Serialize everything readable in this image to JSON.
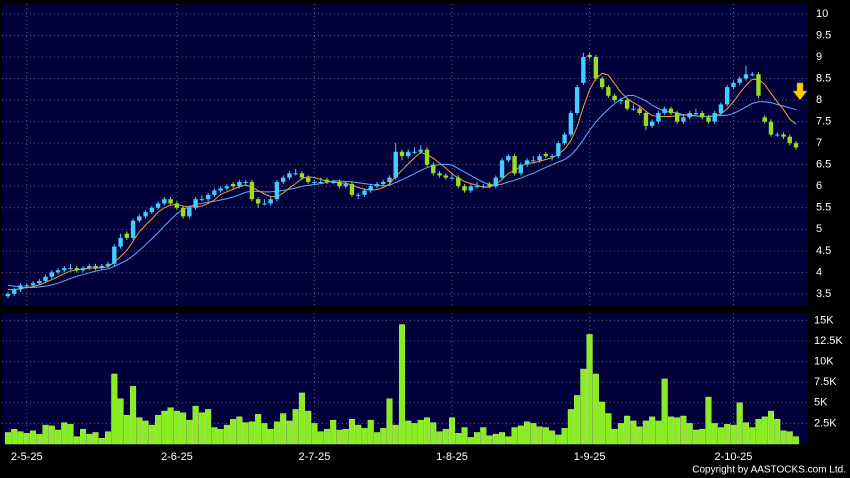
{
  "chart_data": {
    "type": "candlestick",
    "copyright": "Copyright by AASTOCKS.com Ltd.",
    "up_color": "#44ccff",
    "down_color": "#99dd22",
    "grid": true,
    "categories": [
      null,
      null,
      null,
      "2-5-25",
      null,
      null,
      null,
      null,
      null,
      null,
      null,
      null,
      null,
      null,
      null,
      null,
      null,
      null,
      null,
      null,
      null,
      null,
      null,
      null,
      null,
      null,
      null,
      "2-6-25",
      null,
      null,
      null,
      null,
      null,
      null,
      null,
      null,
      null,
      null,
      null,
      null,
      null,
      null,
      null,
      null,
      null,
      null,
      null,
      null,
      null,
      "2-7-25",
      null,
      null,
      null,
      null,
      null,
      null,
      null,
      null,
      null,
      null,
      null,
      null,
      null,
      null,
      null,
      null,
      null,
      null,
      null,
      null,
      null,
      "1-8-25",
      null,
      null,
      null,
      null,
      null,
      null,
      null,
      null,
      null,
      null,
      null,
      null,
      null,
      null,
      null,
      null,
      null,
      null,
      null,
      null,
      null,
      "1-9-25",
      null,
      null,
      null,
      null,
      null,
      null,
      null,
      null,
      null,
      null,
      null,
      null,
      null,
      null,
      null,
      null,
      null,
      null,
      null,
      null,
      null,
      null,
      "2-10-25",
      null,
      null,
      null,
      null,
      null,
      null,
      null,
      null,
      null,
      null
    ],
    "ohlc": [
      [
        3.45,
        3.55,
        3.4,
        3.5
      ],
      [
        3.5,
        3.65,
        3.45,
        3.6
      ],
      [
        3.6,
        3.75,
        3.55,
        3.7
      ],
      [
        3.7,
        3.75,
        3.65,
        3.7
      ],
      [
        3.7,
        3.8,
        3.65,
        3.75
      ],
      [
        3.75,
        3.85,
        3.7,
        3.8
      ],
      [
        3.8,
        3.95,
        3.75,
        3.9
      ],
      [
        3.9,
        4.05,
        3.85,
        4.0
      ],
      [
        4.0,
        4.1,
        3.95,
        4.05
      ],
      [
        4.05,
        4.15,
        4.0,
        4.1
      ],
      [
        4.1,
        4.2,
        4.05,
        4.1
      ],
      [
        4.1,
        4.15,
        4.0,
        4.05
      ],
      [
        4.05,
        4.15,
        4.0,
        4.1
      ],
      [
        4.1,
        4.2,
        4.05,
        4.15
      ],
      [
        4.15,
        4.2,
        4.05,
        4.1
      ],
      [
        4.1,
        4.2,
        4.05,
        4.15
      ],
      [
        4.15,
        4.25,
        4.1,
        4.2
      ],
      [
        4.2,
        4.65,
        4.15,
        4.6
      ],
      [
        4.6,
        4.9,
        4.55,
        4.8
      ],
      [
        4.9,
        4.95,
        4.75,
        4.8
      ],
      [
        4.8,
        5.25,
        4.75,
        5.2
      ],
      [
        5.2,
        5.35,
        5.15,
        5.3
      ],
      [
        5.3,
        5.45,
        5.25,
        5.4
      ],
      [
        5.4,
        5.55,
        5.35,
        5.5
      ],
      [
        5.5,
        5.65,
        5.45,
        5.6
      ],
      [
        5.6,
        5.75,
        5.55,
        5.7
      ],
      [
        5.7,
        5.75,
        5.55,
        5.6
      ],
      [
        5.6,
        5.65,
        5.45,
        5.5
      ],
      [
        5.5,
        5.55,
        5.25,
        5.3
      ],
      [
        5.3,
        5.55,
        5.25,
        5.5
      ],
      [
        5.5,
        5.75,
        5.45,
        5.7
      ],
      [
        5.7,
        5.8,
        5.65,
        5.7
      ],
      [
        5.7,
        5.85,
        5.65,
        5.8
      ],
      [
        5.8,
        5.95,
        5.75,
        5.9
      ],
      [
        5.9,
        6.0,
        5.85,
        5.95
      ],
      [
        5.95,
        6.05,
        5.9,
        6.0
      ],
      [
        6.05,
        6.1,
        5.95,
        6.0
      ],
      [
        6.0,
        6.15,
        5.95,
        6.1
      ],
      [
        6.1,
        6.15,
        6.0,
        6.1
      ],
      [
        6.1,
        6.15,
        5.65,
        5.7
      ],
      [
        5.7,
        5.75,
        5.5,
        5.6
      ],
      [
        5.6,
        5.7,
        5.55,
        5.6
      ],
      [
        5.6,
        5.75,
        5.55,
        5.7
      ],
      [
        5.7,
        6.15,
        5.65,
        6.1
      ],
      [
        6.1,
        6.25,
        6.05,
        6.2
      ],
      [
        6.2,
        6.35,
        6.15,
        6.3
      ],
      [
        6.3,
        6.4,
        6.25,
        6.3
      ],
      [
        6.3,
        6.35,
        6.15,
        6.2
      ],
      [
        6.2,
        6.25,
        6.05,
        6.1
      ],
      [
        6.1,
        6.15,
        6.05,
        6.1
      ],
      [
        6.1,
        6.2,
        6.05,
        6.1
      ],
      [
        6.15,
        6.2,
        6.05,
        6.1
      ],
      [
        6.1,
        6.15,
        6.05,
        6.1
      ],
      [
        6.1,
        6.15,
        5.95,
        6.0
      ],
      [
        6.0,
        6.1,
        5.95,
        6.05
      ],
      [
        6.05,
        6.1,
        5.75,
        5.8
      ],
      [
        5.8,
        5.85,
        5.7,
        5.8
      ],
      [
        5.8,
        5.95,
        5.75,
        5.9
      ],
      [
        5.9,
        6.05,
        5.85,
        6.0
      ],
      [
        6.0,
        6.1,
        5.95,
        6.05
      ],
      [
        6.05,
        6.15,
        6.0,
        6.1
      ],
      [
        6.1,
        6.25,
        6.05,
        6.2
      ],
      [
        6.2,
        7.0,
        6.15,
        6.8
      ],
      [
        6.8,
        6.85,
        6.6,
        6.7
      ],
      [
        6.7,
        6.85,
        6.65,
        6.8
      ],
      [
        6.8,
        6.9,
        6.75,
        6.8
      ],
      [
        6.8,
        6.95,
        6.75,
        6.85
      ],
      [
        6.85,
        6.9,
        6.45,
        6.5
      ],
      [
        6.5,
        6.55,
        6.25,
        6.3
      ],
      [
        6.3,
        6.35,
        6.2,
        6.25
      ],
      [
        6.25,
        6.3,
        6.15,
        6.2
      ],
      [
        6.2,
        6.3,
        6.15,
        6.2
      ],
      [
        6.2,
        6.25,
        5.95,
        6.0
      ],
      [
        6.0,
        6.05,
        5.85,
        5.9
      ],
      [
        5.9,
        6.05,
        5.85,
        6.0
      ],
      [
        6.0,
        6.1,
        5.95,
        6.0
      ],
      [
        6.0,
        6.05,
        5.95,
        6.0
      ],
      [
        6.05,
        6.1,
        5.95,
        6.0
      ],
      [
        6.0,
        6.25,
        5.95,
        6.2
      ],
      [
        6.2,
        6.65,
        6.15,
        6.6
      ],
      [
        6.6,
        6.75,
        6.55,
        6.7
      ],
      [
        6.7,
        6.75,
        6.25,
        6.3
      ],
      [
        6.3,
        6.55,
        6.25,
        6.5
      ],
      [
        6.5,
        6.65,
        6.45,
        6.6
      ],
      [
        6.6,
        6.7,
        6.55,
        6.6
      ],
      [
        6.6,
        6.75,
        6.55,
        6.7
      ],
      [
        6.75,
        6.8,
        6.65,
        6.7
      ],
      [
        6.7,
        6.75,
        6.6,
        6.7
      ],
      [
        6.7,
        7.05,
        6.65,
        7.0
      ],
      [
        7.0,
        7.25,
        6.95,
        7.2
      ],
      [
        7.2,
        7.75,
        7.15,
        7.7
      ],
      [
        7.7,
        8.35,
        7.65,
        8.3
      ],
      [
        8.4,
        9.1,
        8.35,
        9.0
      ],
      [
        9.05,
        9.1,
        8.95,
        9.0
      ],
      [
        9.0,
        9.05,
        8.45,
        8.5
      ],
      [
        8.5,
        8.55,
        8.25,
        8.3
      ],
      [
        8.3,
        8.35,
        8.05,
        8.1
      ],
      [
        8.1,
        8.15,
        7.95,
        8.0
      ],
      [
        8.0,
        8.05,
        7.9,
        8.0
      ],
      [
        8.0,
        8.05,
        7.75,
        7.8
      ],
      [
        7.8,
        7.9,
        7.75,
        7.8
      ],
      [
        7.8,
        7.85,
        7.65,
        7.7
      ],
      [
        7.7,
        7.75,
        7.3,
        7.4
      ],
      [
        7.4,
        7.55,
        7.35,
        7.5
      ],
      [
        7.5,
        7.75,
        7.45,
        7.7
      ],
      [
        7.7,
        7.85,
        7.65,
        7.8
      ],
      [
        7.8,
        7.85,
        7.65,
        7.7
      ],
      [
        7.7,
        7.75,
        7.45,
        7.5
      ],
      [
        7.5,
        7.65,
        7.45,
        7.6
      ],
      [
        7.6,
        7.75,
        7.55,
        7.7
      ],
      [
        7.7,
        7.8,
        7.65,
        7.7
      ],
      [
        7.7,
        7.75,
        7.55,
        7.6
      ],
      [
        7.6,
        7.65,
        7.45,
        7.5
      ],
      [
        7.5,
        7.75,
        7.45,
        7.7
      ],
      [
        7.7,
        7.95,
        7.65,
        7.9
      ],
      [
        7.9,
        8.35,
        7.85,
        8.3
      ],
      [
        8.3,
        8.45,
        8.25,
        8.4
      ],
      [
        8.4,
        8.55,
        8.35,
        8.5
      ],
      [
        8.5,
        8.8,
        8.45,
        8.6
      ],
      [
        8.6,
        8.65,
        8.55,
        8.6
      ],
      [
        8.6,
        8.65,
        8.05,
        8.1
      ],
      [
        7.6,
        7.65,
        7.45,
        7.5
      ],
      [
        7.5,
        7.55,
        7.15,
        7.2
      ],
      [
        7.2,
        7.25,
        7.15,
        7.2
      ],
      [
        7.2,
        7.25,
        7.1,
        7.15
      ],
      [
        7.15,
        7.2,
        6.95,
        7.0
      ],
      [
        7.0,
        7.05,
        6.85,
        6.9
      ]
    ],
    "moving_averages": [
      {
        "color": "#ff9933",
        "values": [
          3.6,
          3.6,
          3.62,
          3.65,
          3.67,
          3.71,
          3.77,
          3.83,
          3.9,
          3.97,
          4.03,
          4.06,
          4.08,
          4.1,
          4.1,
          4.11,
          4.13,
          4.24,
          4.37,
          4.51,
          4.72,
          4.94,
          5.1,
          5.24,
          5.4,
          5.5,
          5.56,
          5.58,
          5.54,
          5.52,
          5.52,
          5.54,
          5.6,
          5.68,
          5.81,
          5.87,
          5.93,
          5.99,
          6.03,
          5.98,
          5.9,
          5.82,
          5.76,
          5.76,
          5.84,
          5.96,
          6.06,
          6.18,
          6.22,
          6.2,
          6.16,
          6.12,
          6.1,
          6.08,
          6.07,
          6.03,
          5.97,
          5.93,
          5.91,
          5.92,
          5.97,
          6.05,
          6.23,
          6.37,
          6.52,
          6.66,
          6.79,
          6.73,
          6.65,
          6.54,
          6.42,
          6.29,
          6.19,
          6.11,
          6.06,
          6.02,
          5.98,
          5.98,
          6.04,
          6.16,
          6.3,
          6.36,
          6.46,
          6.54,
          6.54,
          6.58,
          6.62,
          6.66,
          6.74,
          6.86,
          7.06,
          7.38,
          7.84,
          8.24,
          8.5,
          8.62,
          8.58,
          8.38,
          8.18,
          8.04,
          7.94,
          7.86,
          7.74,
          7.64,
          7.62,
          7.62,
          7.62,
          7.64,
          7.66,
          7.66,
          7.64,
          7.62,
          7.62,
          7.64,
          7.68,
          7.8,
          7.96,
          8.16,
          8.34,
          8.48,
          8.48,
          8.36,
          8.16,
          7.96,
          7.78,
          7.56,
          7.44
        ]
      },
      {
        "color": "#66aaff",
        "values": [
          3.7,
          3.68,
          3.66,
          3.65,
          3.65,
          3.66,
          3.68,
          3.71,
          3.75,
          3.8,
          3.86,
          3.91,
          3.95,
          3.99,
          4.03,
          4.06,
          4.08,
          4.14,
          4.21,
          4.28,
          4.39,
          4.51,
          4.64,
          4.78,
          4.92,
          5.08,
          5.22,
          5.36,
          5.46,
          5.53,
          5.58,
          5.6,
          5.63,
          5.65,
          5.68,
          5.71,
          5.75,
          5.8,
          5.86,
          5.88,
          5.88,
          5.87,
          5.87,
          5.88,
          5.9,
          5.93,
          5.96,
          6.0,
          6.02,
          6.04,
          6.06,
          6.09,
          6.12,
          6.12,
          6.11,
          6.1,
          6.08,
          6.06,
          6.04,
          6.02,
          6.01,
          6.02,
          6.09,
          6.15,
          6.22,
          6.29,
          6.37,
          6.43,
          6.48,
          6.5,
          6.51,
          6.49,
          6.41,
          6.33,
          6.25,
          6.17,
          6.09,
          6.04,
          6.03,
          6.05,
          6.1,
          6.14,
          6.19,
          6.25,
          6.3,
          6.37,
          6.44,
          6.5,
          6.56,
          6.62,
          6.72,
          6.88,
          7.08,
          7.3,
          7.49,
          7.65,
          7.79,
          7.92,
          8.02,
          8.1,
          8.11,
          8.05,
          7.98,
          7.88,
          7.8,
          7.74,
          7.72,
          7.7,
          7.66,
          7.64,
          7.63,
          7.62,
          7.62,
          7.63,
          7.64,
          7.65,
          7.69,
          7.76,
          7.84,
          7.92,
          7.96,
          7.96,
          7.94,
          7.9,
          7.86,
          7.82,
          7.78
        ]
      }
    ],
    "ylim": [
      3.22,
      10.23
    ],
    "yticks": [
      3.5,
      4,
      4.5,
      5,
      5.5,
      6,
      6.5,
      7,
      7.5,
      8,
      8.5,
      9,
      9.5,
      10
    ],
    "volume": {
      "color": "#88ee22",
      "ylim": [
        0,
        15900
      ],
      "yticks": [
        {
          "value": 2500,
          "label": "2.5K"
        },
        {
          "value": 5000,
          "label": "5K"
        },
        {
          "value": 7500,
          "label": "7.5K"
        },
        {
          "value": 10000,
          "label": "10K"
        },
        {
          "value": 12500,
          "label": "12.5K"
        },
        {
          "value": 15000,
          "label": "15K"
        }
      ],
      "values": [
        1400,
        1800,
        1500,
        1300,
        1600,
        1200,
        2300,
        2200,
        1700,
        2600,
        2400,
        900,
        1800,
        1200,
        1400,
        700,
        1500,
        8500,
        5500,
        3500,
        7000,
        3200,
        2800,
        2300,
        3500,
        4000,
        4400,
        4000,
        3800,
        2900,
        4600,
        3800,
        4200,
        2000,
        1800,
        2300,
        3000,
        3300,
        2600,
        2700,
        3600,
        2500,
        1800,
        2700,
        3700,
        2800,
        4200,
        6200,
        4000,
        2500,
        1500,
        1800,
        2900,
        1700,
        1800,
        3000,
        2300,
        1900,
        2900,
        1400,
        1900,
        5500,
        2300,
        14500,
        2800,
        2500,
        2900,
        3200,
        2600,
        1500,
        1800,
        3200,
        1300,
        2000,
        800,
        1400,
        2000,
        1000,
        1200,
        1400,
        900,
        2000,
        2200,
        2700,
        2500,
        2100,
        2000,
        1600,
        1100,
        1900,
        4200,
        5900,
        9100,
        13300,
        8500,
        5100,
        3700,
        1800,
        2500,
        3400,
        2800,
        2100,
        2800,
        3300,
        2800,
        7900,
        3300,
        3200,
        3400,
        2500,
        1700,
        1800,
        5700,
        2500,
        2000,
        2400,
        2300,
        5000,
        2600,
        2000,
        3000,
        3300,
        4000,
        3000,
        1600,
        1500,
        900
      ]
    }
  }
}
